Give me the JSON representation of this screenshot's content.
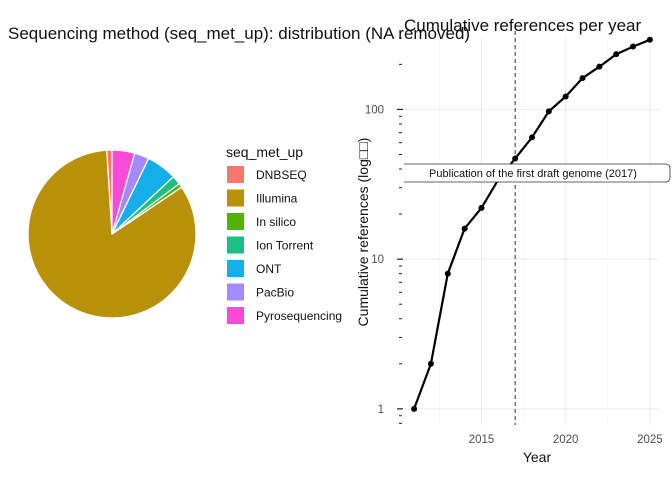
{
  "chart_data": [
    {
      "type": "pie",
      "title": "Sequencing method (seq_met_up): distribution (NA removed)",
      "legend_title": "seq_met_up",
      "legend_position": "right",
      "slices": [
        {
          "label": "DNBSEQ",
          "value": 1.0,
          "color": "#F8766D"
        },
        {
          "label": "Illumina",
          "value": 82.5,
          "color": "#B8900A"
        },
        {
          "label": "In silico",
          "value": 0.8,
          "color": "#53B400"
        },
        {
          "label": "Ion Torrent",
          "value": 1.7,
          "color": "#1BBE85"
        },
        {
          "label": "ONT",
          "value": 5.8,
          "color": "#14AEEB"
        },
        {
          "label": "PacBio",
          "value": 2.8,
          "color": "#A58AFF"
        },
        {
          "label": "Pyrosequencing",
          "value": 4.3,
          "color": "#F94BD8"
        }
      ]
    },
    {
      "type": "line",
      "title": "Cumulative references per year",
      "xlabel": "Year",
      "ylabel": "Cumulative references (log□□)",
      "y_scale": "log10",
      "xlim": [
        2010.4,
        2025.6
      ],
      "ylim": [
        0.78,
        300
      ],
      "grid": true,
      "x_ticks": [
        2015,
        2020,
        2025
      ],
      "y_ticks": [
        1,
        10,
        100
      ],
      "x": [
        2011,
        2012,
        2013,
        2014,
        2015,
        2016,
        2017,
        2018,
        2019,
        2020,
        2021,
        2022,
        2023,
        2024,
        2025
      ],
      "y": [
        1,
        2,
        8,
        16,
        22,
        34,
        47,
        65,
        97,
        122,
        162,
        193,
        234,
        263,
        292
      ],
      "vline": {
        "x": 2017,
        "label": "Publication of the first draft genome (2017)"
      }
    }
  ]
}
